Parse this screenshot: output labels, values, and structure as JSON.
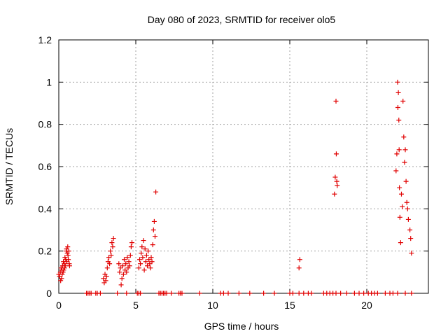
{
  "chart_data": {
    "type": "scatter",
    "title": "Day 080 of 2023, SRMTID for receiver olo5",
    "xlabel": "GPS time / hours",
    "ylabel": "SRMTID / TECUs",
    "xlim": [
      0,
      24
    ],
    "ylim": [
      0,
      1.2
    ],
    "xticks": [
      0,
      5,
      10,
      15,
      20
    ],
    "yticks": [
      0,
      0.2,
      0.4,
      0.6,
      0.8,
      1,
      1.2
    ],
    "xtick_labels": [
      "0",
      "5",
      "10",
      "15",
      "20"
    ],
    "ytick_labels": [
      "0",
      "0.2",
      "0.4",
      "0.6",
      "0.8",
      "1",
      "1.2"
    ],
    "grid": true,
    "marker": "+",
    "series": [
      {
        "name": "SRMTID",
        "color": "#e00000",
        "x": [
          0.0,
          0.05,
          0.1,
          0.12,
          0.15,
          0.18,
          0.2,
          0.22,
          0.25,
          0.28,
          0.3,
          0.32,
          0.35,
          0.38,
          0.4,
          0.42,
          0.45,
          0.48,
          0.5,
          0.52,
          0.55,
          0.58,
          0.6,
          0.62,
          0.65,
          0.68,
          0.7,
          2.9,
          2.95,
          3.0,
          3.05,
          3.1,
          3.15,
          3.2,
          3.25,
          3.3,
          3.35,
          3.4,
          3.45,
          3.5,
          3.55,
          3.9,
          3.95,
          4.0,
          4.05,
          4.1,
          4.15,
          4.2,
          4.25,
          4.3,
          4.35,
          4.4,
          4.45,
          4.5,
          4.55,
          4.6,
          4.65,
          4.7,
          4.75,
          5.2,
          5.25,
          5.3,
          5.35,
          5.4,
          5.45,
          5.5,
          5.55,
          5.6,
          5.65,
          5.7,
          5.75,
          5.8,
          5.85,
          5.9,
          5.95,
          6.0,
          6.05,
          6.1,
          6.15,
          6.2,
          6.25,
          6.3,
          15.6,
          15.65,
          17.9,
          17.95,
          18.0,
          18.02,
          18.05,
          18.08,
          21.9,
          21.95,
          22.0,
          22.02,
          22.05,
          22.08,
          22.1,
          22.12,
          22.15,
          22.2,
          22.25,
          22.3,
          22.35,
          22.4,
          22.45,
          22.5,
          22.55,
          22.6,
          22.65,
          22.7,
          22.8,
          22.85,
          22.9,
          1.8,
          1.9,
          2.0,
          2.1,
          2.4,
          2.5,
          2.7,
          3.8,
          4.4,
          5.1,
          5.2,
          5.3,
          6.5,
          6.6,
          6.7,
          6.8,
          6.9,
          7.0,
          7.3,
          7.8,
          7.9,
          8.0,
          9.15,
          10.5,
          10.7,
          11.0,
          11.7,
          12.4,
          13.3,
          14.0,
          15.0,
          15.2,
          15.6,
          15.9,
          16.2,
          16.4,
          17.2,
          17.4,
          17.6,
          17.8,
          18.0,
          18.3,
          18.7,
          19.2,
          19.5,
          19.8,
          20.1,
          20.3,
          20.5,
          20.7,
          21.2,
          21.5,
          21.7,
          22.0,
          22.5,
          22.9
        ],
        "y": [
          0.09,
          0.08,
          0.1,
          0.06,
          0.12,
          0.07,
          0.11,
          0.09,
          0.13,
          0.1,
          0.15,
          0.11,
          0.14,
          0.12,
          0.17,
          0.13,
          0.16,
          0.2,
          0.21,
          0.15,
          0.19,
          0.22,
          0.18,
          0.16,
          0.2,
          0.14,
          0.13,
          0.07,
          0.05,
          0.09,
          0.06,
          0.08,
          0.12,
          0.15,
          0.17,
          0.14,
          0.2,
          0.18,
          0.24,
          0.22,
          0.26,
          0.14,
          0.1,
          0.12,
          0.04,
          0.07,
          0.13,
          0.09,
          0.16,
          0.11,
          0.14,
          0.1,
          0.17,
          0.12,
          0.15,
          0.13,
          0.18,
          0.22,
          0.24,
          0.12,
          0.16,
          0.14,
          0.19,
          0.22,
          0.17,
          0.25,
          0.11,
          0.21,
          0.15,
          0.18,
          0.13,
          0.2,
          0.16,
          0.14,
          0.12,
          0.17,
          0.15,
          0.23,
          0.3,
          0.34,
          0.27,
          0.48,
          0.12,
          0.16,
          0.47,
          0.55,
          0.91,
          0.66,
          0.53,
          0.51,
          0.58,
          0.66,
          1.0,
          0.88,
          0.95,
          0.82,
          0.68,
          0.5,
          0.36,
          0.24,
          0.47,
          0.41,
          0.91,
          0.74,
          0.62,
          0.68,
          0.53,
          0.43,
          0.4,
          0.35,
          0.3,
          0.26,
          0.19,
          0,
          0,
          0,
          0,
          0,
          0,
          0,
          0,
          0,
          0,
          0,
          0,
          0,
          0,
          0,
          0,
          0,
          0,
          0,
          0,
          0,
          0,
          0,
          0,
          0,
          0,
          0,
          0,
          0,
          0,
          0,
          0,
          0,
          0,
          0,
          0,
          0,
          0,
          0,
          0,
          0,
          0,
          0,
          0,
          0,
          0,
          0,
          0,
          0,
          0,
          0,
          0,
          0,
          0,
          0,
          0
        ]
      }
    ]
  }
}
